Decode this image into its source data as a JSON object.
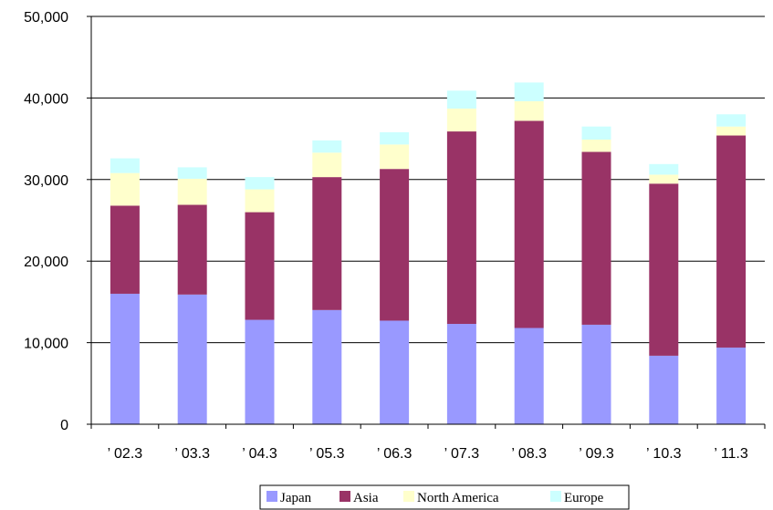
{
  "chart_data": {
    "type": "bar",
    "stacked": true,
    "categories": [
      "’ 02.3",
      "’ 03.3",
      "’ 04.3",
      "’ 05.3",
      "’ 06.3",
      "’ 07.3",
      "’ 08.3",
      "’ 09.3",
      "’ 10.3",
      "’ 11.3"
    ],
    "series": [
      {
        "name": "Japan",
        "color": "#9999ff",
        "values": [
          16000,
          15900,
          12800,
          14000,
          12700,
          12300,
          11800,
          12200,
          8400,
          9400
        ]
      },
      {
        "name": "Asia",
        "color": "#993366",
        "values": [
          10800,
          11000,
          13200,
          16300,
          18600,
          23600,
          25400,
          21200,
          21100,
          26000
        ]
      },
      {
        "name": "North America",
        "color": "#ffffcc",
        "values": [
          4000,
          3200,
          2800,
          3000,
          3000,
          2800,
          2400,
          1500,
          1100,
          1100
        ]
      },
      {
        "name": "Europe",
        "color": "#ccffff",
        "values": [
          1800,
          1400,
          1500,
          1500,
          1500,
          2200,
          2300,
          1600,
          1300,
          1500
        ]
      }
    ],
    "ylim": [
      0,
      50000
    ],
    "yticks": [
      "0",
      "10,000",
      "20,000",
      "30,000",
      "40,000",
      "50,000"
    ],
    "title": "",
    "xlabel": "",
    "ylabel": "",
    "grid": "horizontal",
    "legend_position": "bottom"
  }
}
